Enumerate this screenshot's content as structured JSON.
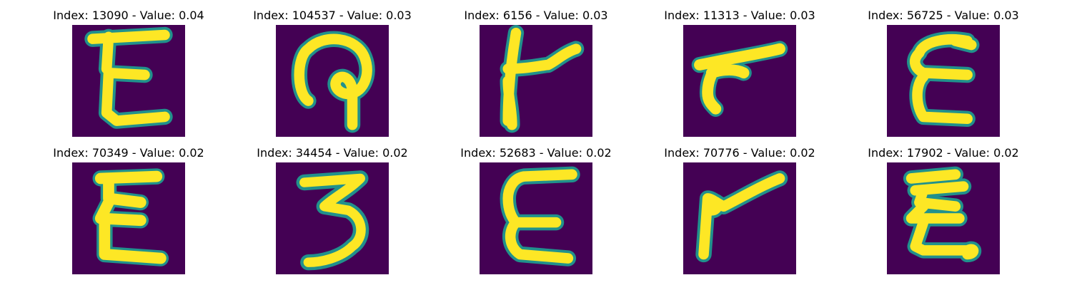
{
  "panels": [
    {
      "title": "Index: 13090 - Value: 0.04",
      "glyph": "E-like"
    },
    {
      "title": "Index: 104537 - Value: 0.03",
      "glyph": "hook-loop"
    },
    {
      "title": "Index: 6156 - Value: 0.03",
      "glyph": "k-like"
    },
    {
      "title": "Index: 11313 - Value: 0.03",
      "glyph": "r-like"
    },
    {
      "title": "Index: 56725 - Value: 0.03",
      "glyph": "E-like"
    },
    {
      "title": "Index: 70349 - Value: 0.02",
      "glyph": "E-like"
    },
    {
      "title": "Index: 34454 - Value: 0.02",
      "glyph": "3-like"
    },
    {
      "title": "Index: 52683 - Value: 0.02",
      "glyph": "E-like"
    },
    {
      "title": "Index: 70776 - Value: 0.02",
      "glyph": "r-like"
    },
    {
      "title": "Index: 17902 - Value: 0.02",
      "glyph": "E-like"
    }
  ],
  "colors": {
    "background": "#440154",
    "stroke_core": "#fde725",
    "stroke_edge": "#21918c"
  }
}
